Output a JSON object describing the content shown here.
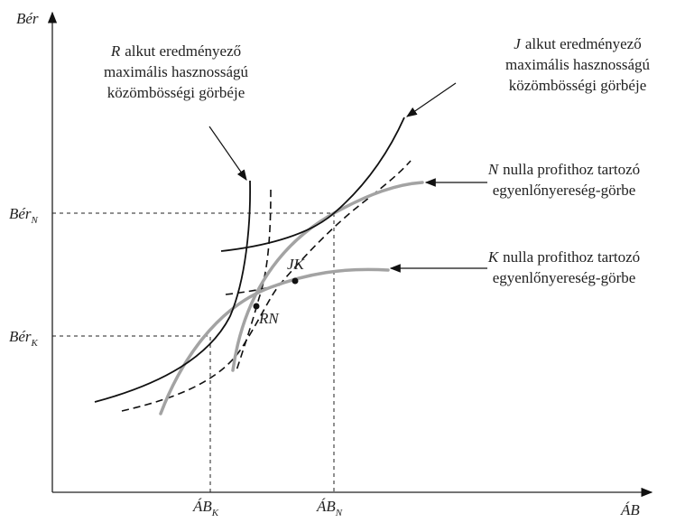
{
  "axes": {
    "y_label": "Bér",
    "x_label": "ÁB"
  },
  "levels": {
    "y": [
      {
        "base": "Bér",
        "sub": "N"
      },
      {
        "base": "Bér",
        "sub": "K"
      }
    ],
    "x": [
      {
        "base": "ÁB",
        "sub": "K"
      },
      {
        "base": "ÁB",
        "sub": "N"
      }
    ]
  },
  "points": [
    "JK",
    "RN"
  ],
  "annotations": [
    {
      "letter": "R",
      "lines": [
        "alkut eredményező",
        "maximális hasznosságú",
        "közömbösségi görbéje"
      ]
    },
    {
      "letter": "J",
      "lines": [
        "alkut eredményező",
        "maximális hasznosságú",
        "közömbösségi görbéje"
      ]
    },
    {
      "letter": "N",
      "lines": [
        "nulla profithoz tartozó",
        "egyenlőnyereség-görbe"
      ]
    },
    {
      "letter": "K",
      "lines": [
        "nulla profithoz tartozó",
        "egyenlőnyereség-görbe"
      ]
    }
  ]
}
